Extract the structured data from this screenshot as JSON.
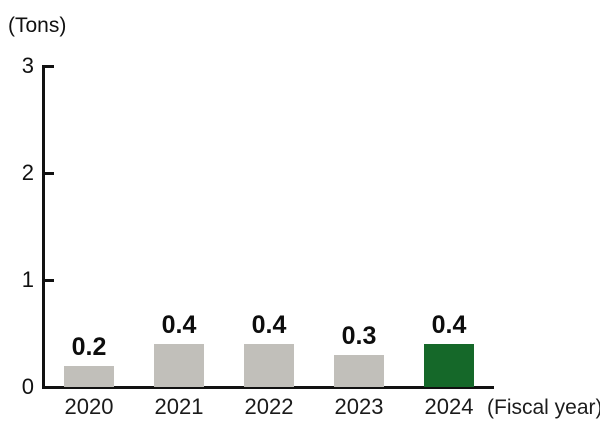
{
  "chart_data": {
    "type": "bar",
    "title": "",
    "unit_label": "(Tons)",
    "x_axis_label": "(Fiscal year)",
    "categories": [
      "2020",
      "2021",
      "2022",
      "2023",
      "2024"
    ],
    "values": [
      0.2,
      0.4,
      0.4,
      0.3,
      0.4
    ],
    "value_labels": [
      "0.2",
      "0.4",
      "0.4",
      "0.3",
      "0.4"
    ],
    "highlight_index": 4,
    "y_ticks": [
      0,
      1,
      2,
      3
    ],
    "ylim": [
      0,
      3
    ],
    "grid": false,
    "legend_position": "none",
    "colors": {
      "bar_default": "#c1bfba",
      "bar_highlight": "#156829",
      "axis": "#111111",
      "text": "#111111"
    }
  }
}
